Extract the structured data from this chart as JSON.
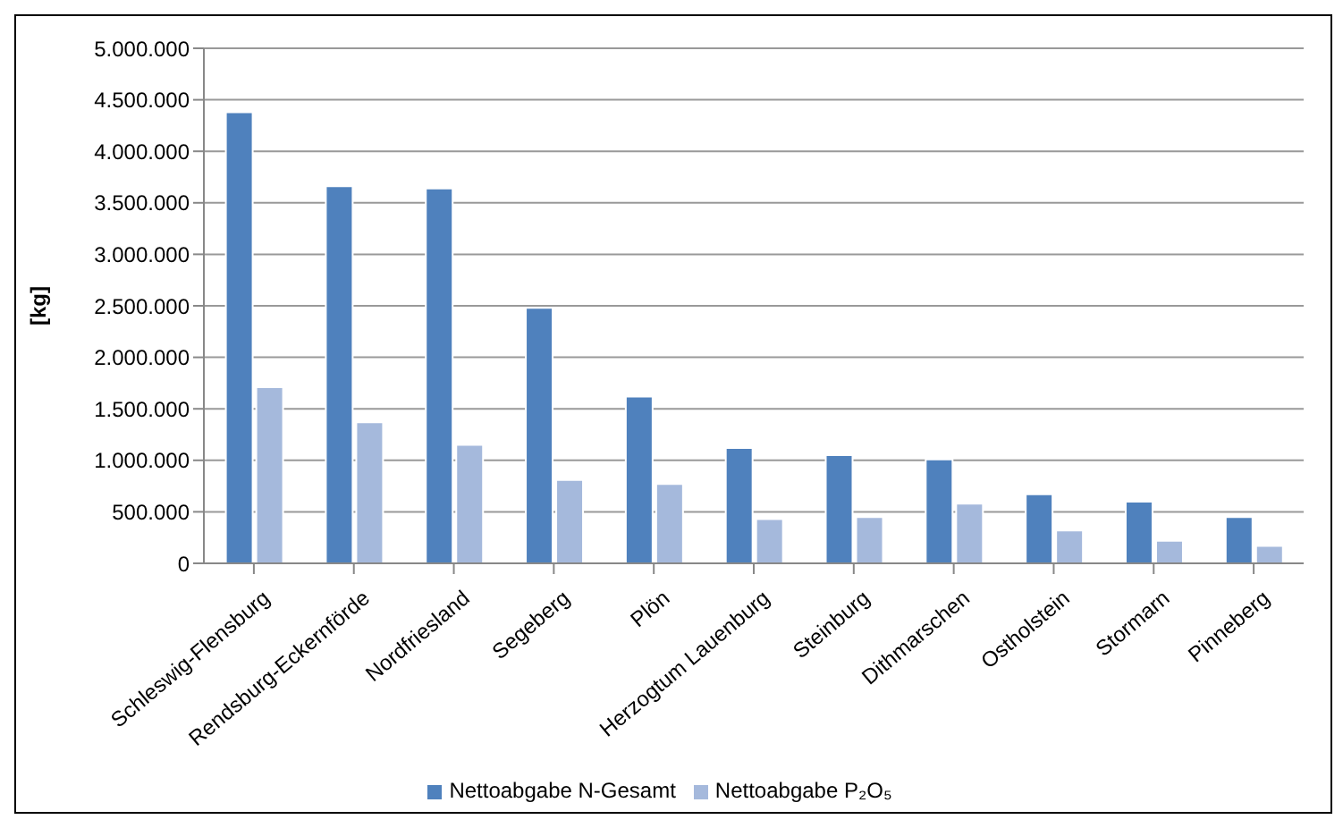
{
  "chart_data": {
    "type": "bar",
    "ylabel": "[kg]",
    "categories": [
      "Schleswig-Flensburg",
      "Rendsburg-Eckernförde",
      "Nordfriesland",
      "Segeberg",
      "Plön",
      "Herzogtum Lauenburg",
      "Steinburg",
      "Dithmarschen",
      "Ostholstein",
      "Stormarn",
      "Pinneberg"
    ],
    "series": [
      {
        "name": "Nettoabgabe N-Gesamt",
        "color": "#4f81bd",
        "values": [
          4380000,
          3660000,
          3640000,
          2480000,
          1620000,
          1120000,
          1050000,
          1010000,
          670000,
          600000,
          450000
        ]
      },
      {
        "name": "Nettoabgabe P₂O₅",
        "color": "#a5b9dc",
        "values": [
          1710000,
          1370000,
          1150000,
          810000,
          770000,
          430000,
          450000,
          580000,
          320000,
          220000,
          170000
        ]
      }
    ],
    "ylim": [
      0,
      5000000
    ],
    "yticks": [
      0,
      {
        "value": 500000,
        "label": "500.000"
      },
      {
        "value": 1000000,
        "label": "1.000.000"
      },
      {
        "value": 1500000,
        "label": "1.500.000"
      },
      {
        "value": 2000000,
        "label": "2.000.000"
      },
      {
        "value": 2500000,
        "label": "2.500.000"
      },
      {
        "value": 3000000,
        "label": "3.000.000"
      },
      {
        "value": 3500000,
        "label": "3.500.000"
      },
      {
        "value": 4000000,
        "label": "4.000.000"
      },
      {
        "value": 4500000,
        "label": "4.500.000"
      },
      {
        "value": 5000000,
        "label": "5.000.000"
      }
    ],
    "grid": "y",
    "legend": "bottom"
  }
}
